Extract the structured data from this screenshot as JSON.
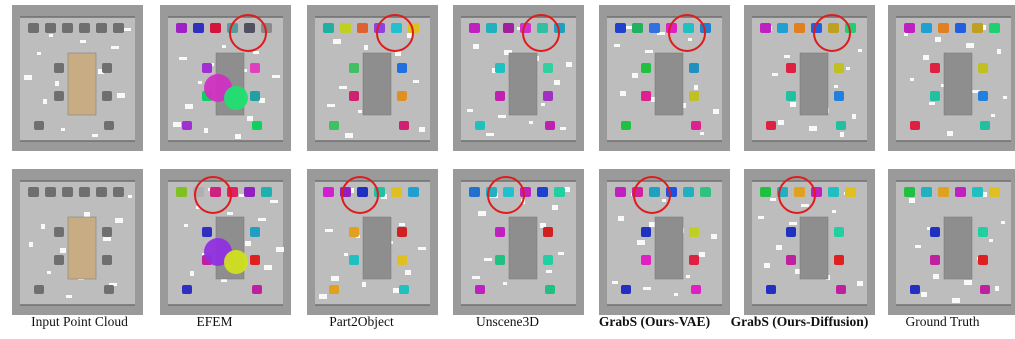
{
  "captions": [
    {
      "text": "Input Point Cloud",
      "bold": false
    },
    {
      "text": "EFEM",
      "bold": false
    },
    {
      "text": "Part2Object",
      "bold": false
    },
    {
      "text": "Unscene3D",
      "bold": false
    },
    {
      "text": "GrabS (Ours-VAE)",
      "bold": true
    },
    {
      "text": "GrabS (Ours-Diffusion)",
      "bold": true
    },
    {
      "text": "Ground Truth",
      "bold": false
    }
  ],
  "colors": {
    "wall": "#9a9a9a",
    "floor": "#bdbdbd",
    "table": "#8e8e8e",
    "table_input": "#c8ad84",
    "chair_input": "#7c7c7c",
    "highlight_circle": "#e01b1b"
  },
  "rows": [
    {
      "methods": [
        {
          "chairs_top": [
            "#6f6f6f",
            "#6f6f6f",
            "#6f6f6f",
            "#6f6f6f",
            "#6f6f6f",
            "#6f6f6f"
          ],
          "chairs_side": [
            "#6f6f6f",
            "#6f6f6f",
            "#6f6f6f",
            "#6f6f6f"
          ],
          "blobs": []
        },
        {
          "chairs_top": [
            "#a020c8",
            "#3030c0",
            "#d4143a",
            "#5a9a9a",
            "#505060",
            "#8a8a8a"
          ],
          "chairs_side": [
            "#a030d0",
            "#10d060",
            "#e040c0",
            "#20a0a0"
          ],
          "blobs": [
            "#d030c0",
            "#20e070"
          ]
        },
        {
          "chairs_top": [
            "#20b0a0",
            "#c0d020",
            "#e06030",
            "#9040e0",
            "#20c0d0",
            "#e0c020"
          ],
          "chairs_side": [
            "#40c060",
            "#d02070",
            "#2070e0",
            "#e09020"
          ],
          "blobs": []
        },
        {
          "chairs_top": [
            "#c020c0",
            "#20b0c0",
            "#a020a0",
            "#d030d0",
            "#30c0a0",
            "#20a0c0"
          ],
          "chairs_side": [
            "#20c0c0",
            "#c020b0",
            "#30d0a0",
            "#a030c0"
          ],
          "blobs": []
        },
        {
          "chairs_top": [
            "#2040d0",
            "#20b060",
            "#3070e0",
            "#e020c0",
            "#20c0c0",
            "#2080d0"
          ],
          "chairs_side": [
            "#20c040",
            "#e02090",
            "#2090c0",
            "#c0c020"
          ],
          "blobs": []
        },
        {
          "chairs_top": [
            "#c020c0",
            "#20a0d0",
            "#e08020",
            "#2060e0",
            "#c0a020",
            "#20d070"
          ],
          "chairs_side": [
            "#e02040",
            "#20c0a0",
            "#c0c020",
            "#2080e0"
          ],
          "blobs": []
        },
        {
          "chairs_top": [
            "#c020c0",
            "#20a0d0",
            "#e08020",
            "#2060e0",
            "#c0a020",
            "#20d070"
          ],
          "chairs_side": [
            "#e02040",
            "#20c0a0",
            "#c0c020",
            "#2080e0"
          ],
          "blobs": []
        }
      ]
    },
    {
      "methods": [
        {
          "chairs_top": [
            "#6f6f6f",
            "#6f6f6f",
            "#6f6f6f",
            "#6f6f6f",
            "#6f6f6f",
            "#6f6f6f"
          ],
          "chairs_side": [
            "#6f6f6f",
            "#6f6f6f",
            "#6f6f6f",
            "#6f6f6f"
          ],
          "blobs": []
        },
        {
          "chairs_top": [
            "#80c020",
            "#b0b0b0",
            "#d02080",
            "#e02060",
            "#9020c0",
            "#20b0b0"
          ],
          "chairs_side": [
            "#3030c0",
            "#c020a0",
            "#20a0c0",
            "#e02020"
          ],
          "blobs": [
            "#9030e0",
            "#d0e020"
          ]
        },
        {
          "chairs_top": [
            "#d020d0",
            "#9020c0",
            "#2030c0",
            "#20c0a0",
            "#e0c020",
            "#20a0d0"
          ],
          "chairs_side": [
            "#e0a020",
            "#20c0c0",
            "#d02020",
            "#e0c020"
          ],
          "blobs": []
        },
        {
          "chairs_top": [
            "#2070d0",
            "#20b0c0",
            "#20c0d0",
            "#c020c0",
            "#2040d0",
            "#20d0a0"
          ],
          "chairs_side": [
            "#c020c0",
            "#20c080",
            "#d02020",
            "#20d0a0"
          ],
          "blobs": []
        },
        {
          "chairs_top": [
            "#c020c0",
            "#d020a0",
            "#20a0c0",
            "#2050e0",
            "#20b0c0",
            "#30c080"
          ],
          "chairs_side": [
            "#2030c0",
            "#e020c0",
            "#c0d020",
            "#e02040"
          ],
          "blobs": []
        },
        {
          "chairs_top": [
            "#20c040",
            "#20b0c0",
            "#e0a020",
            "#c020c0",
            "#20c0c0",
            "#e0c020"
          ],
          "chairs_side": [
            "#2030c0",
            "#c020a0",
            "#20d0a0",
            "#e02020"
          ],
          "blobs": []
        },
        {
          "chairs_top": [
            "#20c040",
            "#20b0c0",
            "#e0a020",
            "#c020c0",
            "#20c0c0",
            "#e0c020"
          ],
          "chairs_side": [
            "#2030c0",
            "#c020a0",
            "#20d0a0",
            "#e02020"
          ],
          "blobs": []
        }
      ]
    }
  ]
}
